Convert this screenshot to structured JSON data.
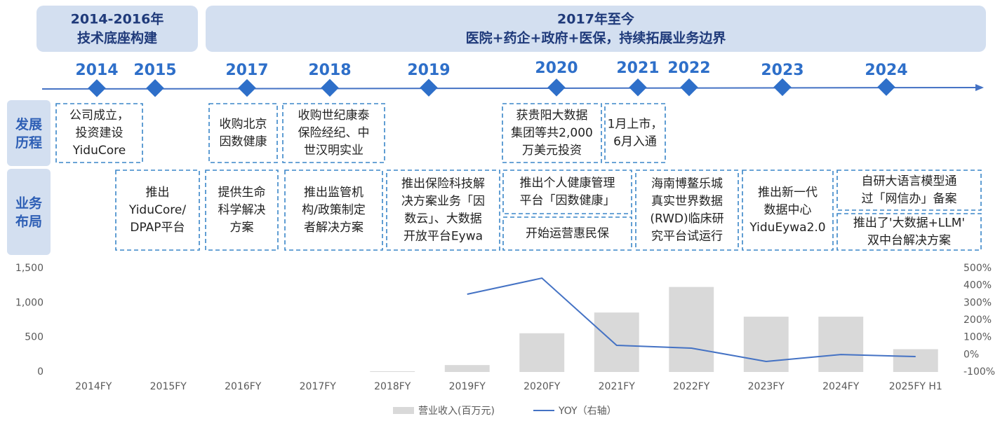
{
  "phases": [
    {
      "title": "2014-2016年",
      "subtitle": "技术底座构建"
    },
    {
      "title": "2017年至今",
      "subtitle": "医院+药企+政府+医保，持续拓展业务边界"
    }
  ],
  "years": [
    "2014",
    "2015",
    "2017",
    "2018",
    "2019",
    "2020",
    "2021",
    "2022",
    "2023",
    "2024"
  ],
  "row_labels": [
    "发展历程",
    "业务布局"
  ],
  "development": [
    [
      "公司成立，",
      "投资建设",
      "YiduCore"
    ],
    [
      "收购北京",
      "因数健康"
    ],
    [
      "收购世纪康泰",
      "保险经纪、中",
      "世汉明实业"
    ],
    [
      "获贵阳大数据",
      "集团等共2,000",
      "万美元投资"
    ],
    [
      "1月上市，",
      "6月入通"
    ]
  ],
  "business": [
    [
      "推出",
      "YiduCore/",
      "DPAP平台"
    ],
    [
      "提供生命",
      "科学解决",
      "方案"
    ],
    [
      "推出监管机",
      "构/政策制定",
      "者解决方案"
    ],
    [
      "推出保险科技解",
      "决方案业务「因",
      "数云」、大数据",
      "开放平台Eywa"
    ],
    [
      "推出个人健康管理",
      "平台「因数健康」"
    ],
    [
      "开始运营惠民保"
    ],
    [
      "海南博鳌乐城",
      "真实世界数据",
      "(RWD)临床研",
      "究平台试运行"
    ],
    [
      "推出新一代",
      "数据中心",
      "YiduEywa2.0"
    ],
    [
      "自研大语言模型通",
      "过「网信办」备案"
    ],
    [
      "推出了'大数据+LLM'",
      "双中台解决方案"
    ]
  ],
  "chart_data": {
    "type": "bar",
    "categories": [
      "2014FY",
      "2015FY",
      "2016FY",
      "2017FY",
      "2018FY",
      "2019FY",
      "2020FY",
      "2021FY",
      "2022FY",
      "2023FY",
      "2024FY",
      "2025FY H1"
    ],
    "series": [
      {
        "name": "营业收入(百万元)",
        "type": "bar",
        "color": "#d9d9d9",
        "values": [
          0,
          0,
          0,
          0,
          10,
          100,
          560,
          860,
          1230,
          800,
          800,
          330
        ]
      },
      {
        "name": "YOY（右轴）",
        "type": "line",
        "axis": "y2",
        "color": "#4472c4",
        "values": [
          null,
          null,
          null,
          null,
          null,
          350,
          443,
          54,
          38,
          -39,
          1,
          -11
        ]
      }
    ],
    "ylim": [
      0,
      1500
    ],
    "yticks": [
      0,
      500,
      {
        "value": 1000,
        "label": "1,000"
      },
      {
        "value": 1500,
        "label": "1,500"
      }
    ],
    "y2lim": [
      -100,
      500
    ],
    "y2ticks": [
      {
        "value": -100,
        "label": "-100%"
      },
      {
        "value": 0,
        "label": "0%"
      },
      {
        "value": 100,
        "label": "100%"
      },
      {
        "value": 200,
        "label": "200%"
      },
      {
        "value": 300,
        "label": "300%"
      },
      {
        "value": 400,
        "label": "400%"
      },
      {
        "value": 500,
        "label": "500%"
      }
    ]
  }
}
